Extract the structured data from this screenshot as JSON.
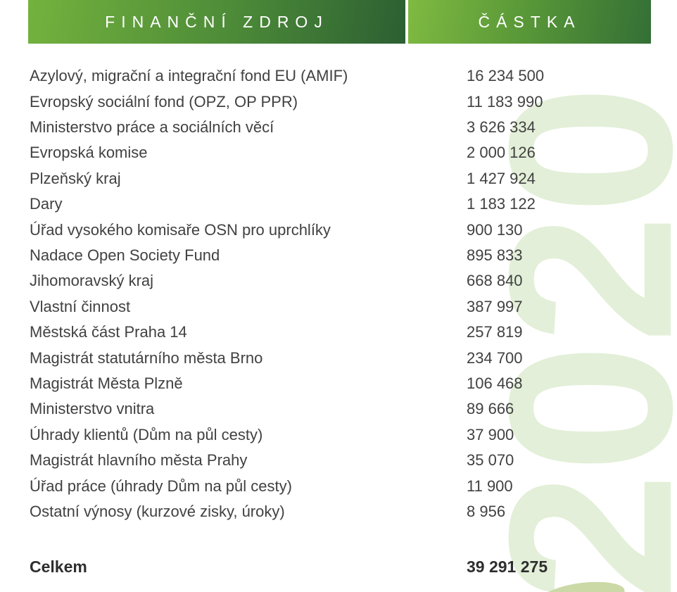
{
  "header": {
    "source_col": "FINANČNÍ ZDROJ",
    "amount_col": "ČÁSTKA"
  },
  "rows": [
    {
      "source": "Azylový, migrační a integrační fond EU (AMIF)",
      "amount": "16 234 500"
    },
    {
      "source": "Evropský sociální fond (OPZ, OP PPR)",
      "amount": "11 183 990"
    },
    {
      "source": "Ministerstvo práce a sociálních věcí",
      "amount": "3 626 334"
    },
    {
      "source": "Evropská komise",
      "amount": "2 000 126"
    },
    {
      "source": "Plzeňský kraj",
      "amount": "1 427 924"
    },
    {
      "source": "Dary",
      "amount": "1 183 122"
    },
    {
      "source": "Úřad vysokého komisaře OSN pro uprchlíky",
      "amount": "900 130"
    },
    {
      "source": "Nadace Open Society Fund",
      "amount": "895 833"
    },
    {
      "source": "Jihomoravský kraj",
      "amount": "668 840"
    },
    {
      "source": "Vlastní činnost",
      "amount": "387 997"
    },
    {
      "source": "Městská část Praha 14",
      "amount": "257 819"
    },
    {
      "source": "Magistrát statutárního města Brno",
      "amount": "234 700"
    },
    {
      "source": "Magistrát Města Plzně",
      "amount": "106 468"
    },
    {
      "source": "Ministerstvo vnitra",
      "amount": "89 666"
    },
    {
      "source": "Úhrady klientů (Dům na půl cesty)",
      "amount": "37 900"
    },
    {
      "source": "Magistrát hlavního města Prahy",
      "amount": "35 070"
    },
    {
      "source": "Úřad práce (úhrady Dům na půl cesty)",
      "amount": "11 900"
    },
    {
      "source": "Ostatní výnosy (kurzové zisky, úroky)",
      "amount": "8 956"
    }
  ],
  "total": {
    "label": "Celkem",
    "amount": "39 291 275"
  },
  "watermark": "2020",
  "colors": {
    "bar_gradient_start": "#74b23e",
    "bar_gradient_end": "#2c5f32",
    "watermark_green": "#e3efd8",
    "corner_green": "#cbd9a6",
    "row_text": "#414141",
    "total_text": "#2e2e2e",
    "header_text": "#ffffff"
  }
}
